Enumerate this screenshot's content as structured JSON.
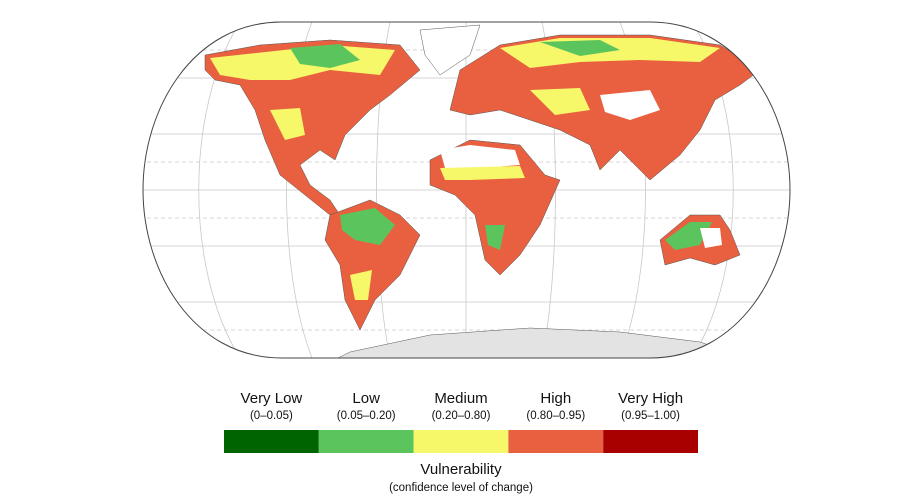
{
  "legend": {
    "items": [
      {
        "label": "Very Low",
        "range": "(0–0.05)",
        "color": "#006400"
      },
      {
        "label": "Low",
        "range": "(0.05–0.20)",
        "color": "#5cc45c"
      },
      {
        "label": "Medium",
        "range": "(0.20–0.80)",
        "color": "#f7f76a"
      },
      {
        "label": "High",
        "range": "(0.80–0.95)",
        "color": "#e8603f"
      },
      {
        "label": "Very High",
        "range": "(0.95–1.00)",
        "color": "#a80000"
      }
    ],
    "title": "Vulnerability",
    "subtitle": "(confidence level of change)"
  }
}
